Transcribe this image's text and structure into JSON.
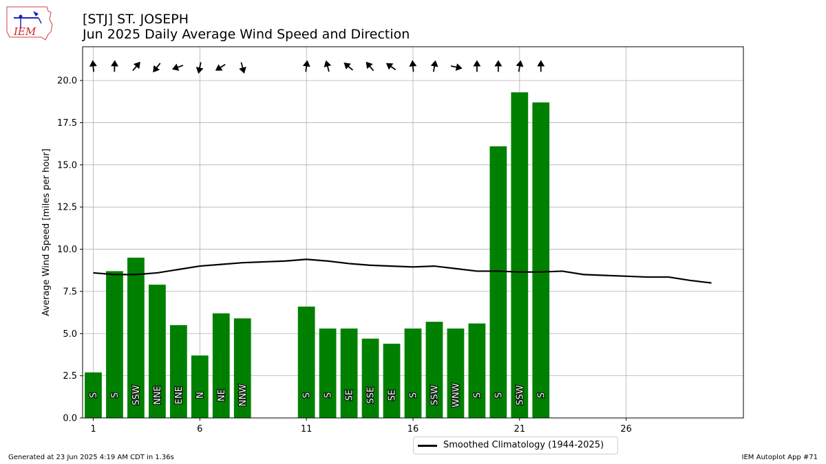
{
  "header": {
    "title_line1": "[STJ] ST. JOSEPH",
    "title_line2": "Jun 2025 Daily Average Wind Speed and Direction"
  },
  "logo": {
    "text": "IEM"
  },
  "legend": {
    "label": "Smoothed Climatology (1944-2025)"
  },
  "footer": {
    "left": "Generated at 23 Jun 2025 4:19 AM CDT in 1.36s",
    "right": "IEM Autoplot App #71"
  },
  "colors": {
    "bar": "#008000",
    "climatology": "#000000",
    "grid": "#b0b0b0"
  },
  "chart_data": {
    "type": "bar",
    "ylabel": "Average Wind Speed [miles per hour]",
    "xlim": [
      0.5,
      31.5
    ],
    "ylim": [
      0,
      22
    ],
    "xticks": [
      1,
      6,
      11,
      16,
      21,
      26
    ],
    "yticks": [
      "0.0",
      "2.5",
      "5.0",
      "7.5",
      "10.0",
      "12.5",
      "15.0",
      "17.5",
      "20.0"
    ],
    "grid": true,
    "legend_position": "bottom-center",
    "bars": [
      {
        "day": 1,
        "speed": 2.7,
        "dir": "S",
        "arrow_deg": 175
      },
      {
        "day": 2,
        "speed": 8.7,
        "dir": "S",
        "arrow_deg": 182
      },
      {
        "day": 3,
        "speed": 9.5,
        "dir": "SSW",
        "arrow_deg": 220
      },
      {
        "day": 4,
        "speed": 7.9,
        "dir": "NNE",
        "arrow_deg": 38
      },
      {
        "day": 5,
        "speed": 5.5,
        "dir": "ENE",
        "arrow_deg": 70
      },
      {
        "day": 6,
        "speed": 3.7,
        "dir": "N",
        "arrow_deg": 12
      },
      {
        "day": 7,
        "speed": 6.2,
        "dir": "NE",
        "arrow_deg": 58
      },
      {
        "day": 8,
        "speed": 5.9,
        "dir": "NNW",
        "arrow_deg": 345
      },
      {
        "day": 11,
        "speed": 6.6,
        "dir": "S",
        "arrow_deg": 188
      },
      {
        "day": 12,
        "speed": 5.3,
        "dir": "S",
        "arrow_deg": 165
      },
      {
        "day": 13,
        "speed": 5.3,
        "dir": "SE",
        "arrow_deg": 130
      },
      {
        "day": 14,
        "speed": 4.7,
        "dir": "SSE",
        "arrow_deg": 140
      },
      {
        "day": 15,
        "speed": 4.4,
        "dir": "SE",
        "arrow_deg": 125
      },
      {
        "day": 16,
        "speed": 5.3,
        "dir": "S",
        "arrow_deg": 175
      },
      {
        "day": 17,
        "speed": 5.7,
        "dir": "SSW",
        "arrow_deg": 190
      },
      {
        "day": 18,
        "speed": 5.3,
        "dir": "WNW",
        "arrow_deg": 282
      },
      {
        "day": 19,
        "speed": 5.6,
        "dir": "S",
        "arrow_deg": 180
      },
      {
        "day": 20,
        "speed": 16.1,
        "dir": "S",
        "arrow_deg": 180
      },
      {
        "day": 21,
        "speed": 19.3,
        "dir": "SSW",
        "arrow_deg": 190
      },
      {
        "day": 22,
        "speed": 18.7,
        "dir": "S",
        "arrow_deg": 180
      }
    ],
    "climatology": {
      "name": "Smoothed Climatology (1944-2025)",
      "x": [
        1,
        2,
        3,
        4,
        5,
        6,
        7,
        8,
        9,
        10,
        11,
        12,
        13,
        14,
        15,
        16,
        17,
        18,
        19,
        20,
        21,
        22,
        23,
        24,
        25,
        26,
        27,
        28,
        29,
        30
      ],
      "y": [
        8.6,
        8.5,
        8.5,
        8.6,
        8.8,
        9.0,
        9.1,
        9.2,
        9.25,
        9.3,
        9.4,
        9.3,
        9.15,
        9.05,
        9.0,
        8.95,
        9.0,
        8.85,
        8.7,
        8.7,
        8.65,
        8.65,
        8.7,
        8.5,
        8.45,
        8.4,
        8.35,
        8.35,
        8.15,
        8.0
      ]
    }
  }
}
